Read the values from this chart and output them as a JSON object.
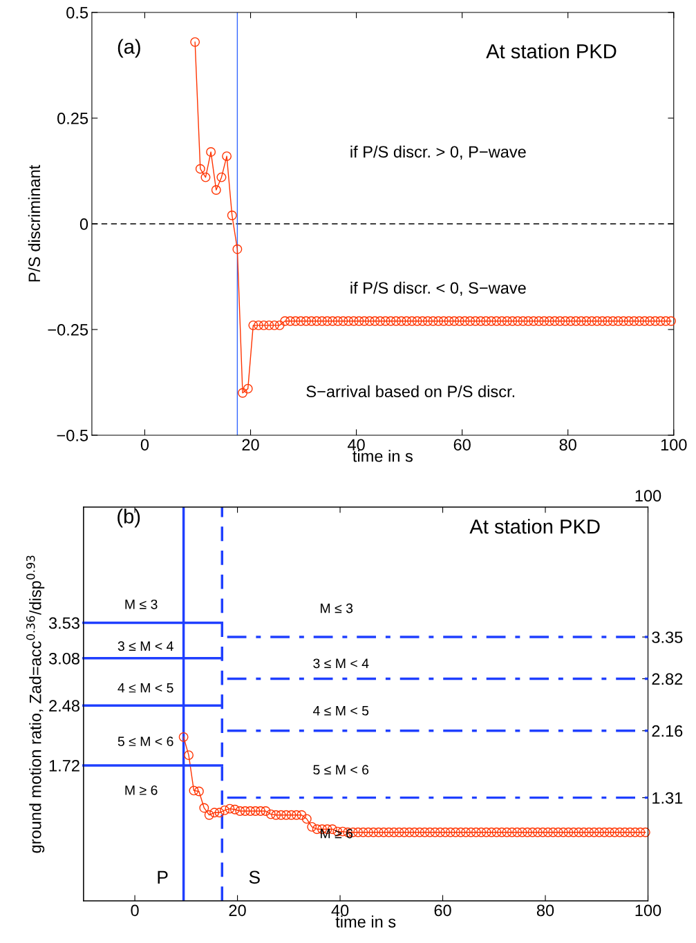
{
  "chart_data": [
    {
      "type": "line",
      "xlabel": "time in s",
      "ylabel": "P/S discriminant",
      "xlim": [
        -10,
        100
      ],
      "ylim": [
        -0.5,
        0.5
      ],
      "xticks": [
        0,
        20,
        40,
        60,
        80,
        100
      ],
      "yticks": [
        {
          "value": -0.5,
          "label": "−0.5"
        },
        {
          "value": -0.25,
          "label": "−0.25"
        },
        0,
        0.25,
        0.5
      ],
      "grid": false,
      "legend": false,
      "marker": "circle",
      "line_style": "solid",
      "series": [
        {
          "color": "#ff3300",
          "x": [
            9.5,
            10.5,
            11.5,
            12.5,
            13.5,
            14.5,
            15.5,
            16.5,
            17.5,
            18.5,
            19.5,
            20.5,
            21.5,
            22.5,
            23.5,
            24.5,
            25.5,
            26.5,
            27.5,
            28.5,
            29.5,
            30.5,
            31.5,
            32.5,
            33.5,
            34.5,
            35.5,
            36.5,
            37.5,
            38.5,
            39.5,
            40.5,
            41.5,
            42.5,
            43.5,
            44.5,
            45.5,
            46.5,
            47.5,
            48.5,
            49.5,
            50.5,
            51.5,
            52.5,
            53.5,
            54.5,
            55.5,
            56.5,
            57.5,
            58.5,
            59.5,
            60.5,
            61.5,
            62.5,
            63.5,
            64.5,
            65.5,
            66.5,
            67.5,
            68.5,
            69.5,
            70.5,
            71.5,
            72.5,
            73.5,
            74.5,
            75.5,
            76.5,
            77.5,
            78.5,
            79.5,
            80.5,
            81.5,
            82.5,
            83.5,
            84.5,
            85.5,
            86.5,
            87.5,
            88.5,
            89.5,
            90.5,
            91.5,
            92.5,
            93.5,
            94.5,
            95.5,
            96.5,
            97.5,
            98.5,
            99.5
          ],
          "values": [
            0.43,
            0.13,
            0.11,
            0.17,
            0.08,
            0.11,
            0.16,
            0.02,
            -0.06,
            -0.4,
            -0.39,
            -0.24,
            -0.24,
            -0.24,
            -0.24,
            -0.24,
            -0.24,
            -0.23,
            -0.23,
            -0.23,
            -0.23,
            -0.23,
            -0.23,
            -0.23,
            -0.23,
            -0.23,
            -0.23,
            -0.23,
            -0.23,
            -0.23,
            -0.23,
            -0.23,
            -0.23,
            -0.23,
            -0.23,
            -0.23,
            -0.23,
            -0.23,
            -0.23,
            -0.23,
            -0.23,
            -0.23,
            -0.23,
            -0.23,
            -0.23,
            -0.23,
            -0.23,
            -0.23,
            -0.23,
            -0.23,
            -0.23,
            -0.23,
            -0.23,
            -0.23,
            -0.23,
            -0.23,
            -0.23,
            -0.23,
            -0.23,
            -0.23,
            -0.23,
            -0.23,
            -0.23,
            -0.23,
            -0.23,
            -0.23,
            -0.23,
            -0.23,
            -0.23,
            -0.23,
            -0.23,
            -0.23,
            -0.23,
            -0.23,
            -0.23,
            -0.23,
            -0.23,
            -0.23,
            -0.23,
            -0.23,
            -0.23,
            -0.23,
            -0.23,
            -0.23,
            -0.23,
            -0.23,
            -0.23,
            -0.23,
            -0.23,
            -0.23,
            -0.23
          ]
        }
      ],
      "ref_lines": [
        {
          "axis": "y",
          "value": 0,
          "color": "#000000",
          "line_style": "dashed"
        },
        {
          "axis": "x",
          "value": 17.5,
          "color": "#3366ff",
          "line_style": "solid"
        }
      ],
      "annotations": [
        "(a)",
        "At station PKD",
        "if P/S discr. > 0, P−wave",
        "if P/S discr. < 0, S−wave",
        "S−arrival based on P/S discr."
      ]
    },
    {
      "type": "line",
      "xlabel": "time in s",
      "ylabel": "ground motion ratio, Zad=acc$^{0.36}$/disp$^{0.93}$",
      "xlim": [
        -10,
        100
      ],
      "ylim": [
        0,
        5
      ],
      "y2lim": [
        0,
        5
      ],
      "xticks": [
        0,
        20,
        40,
        60,
        80,
        100
      ],
      "yticks": [
        1.72,
        2.48,
        3.08,
        3.53
      ],
      "y2ticks": [
        1.31,
        2.16,
        2.82,
        3.35
      ],
      "grid": false,
      "legend": false,
      "series": [
        {
          "color": "#ff3300",
          "marker": "circle",
          "line_style": "solid",
          "x": [
            9.5,
            10.5,
            11.5,
            12.5,
            13.5,
            14.5,
            15.5,
            16.5,
            17.5,
            18.5,
            19.5,
            20.5,
            21.5,
            22.5,
            23.5,
            24.5,
            25.5,
            26.5,
            27.5,
            28.5,
            29.5,
            30.5,
            31.5,
            32.5,
            33.5,
            34.5,
            35.5,
            36.5,
            37.5,
            38.5,
            39.5,
            40.5,
            41.5,
            42.5,
            43.5,
            44.5,
            45.5,
            46.5,
            47.5,
            48.5,
            49.5,
            50.5,
            51.5,
            52.5,
            53.5,
            54.5,
            55.5,
            56.5,
            57.5,
            58.5,
            59.5,
            60.5,
            61.5,
            62.5,
            63.5,
            64.5,
            65.5,
            66.5,
            67.5,
            68.5,
            69.5,
            70.5,
            71.5,
            72.5,
            73.5,
            74.5,
            75.5,
            76.5,
            77.5,
            78.5,
            79.5,
            80.5,
            81.5,
            82.5,
            83.5,
            84.5,
            85.5,
            86.5,
            87.5,
            88.5,
            89.5,
            90.5,
            91.5,
            92.5,
            93.5,
            94.5,
            95.5,
            96.5,
            97.5,
            98.5,
            99.5
          ],
          "values": [
            2.08,
            1.85,
            1.4,
            1.39,
            1.18,
            1.09,
            1.12,
            1.12,
            1.15,
            1.17,
            1.16,
            1.14,
            1.14,
            1.14,
            1.14,
            1.14,
            1.14,
            1.1,
            1.09,
            1.09,
            1.09,
            1.09,
            1.09,
            1.09,
            1.04,
            0.94,
            0.91,
            0.91,
            0.91,
            0.91,
            0.88,
            0.88,
            0.87,
            0.87,
            0.87,
            0.87,
            0.87,
            0.87,
            0.87,
            0.87,
            0.87,
            0.87,
            0.87,
            0.87,
            0.87,
            0.87,
            0.87,
            0.87,
            0.87,
            0.87,
            0.87,
            0.87,
            0.87,
            0.87,
            0.87,
            0.87,
            0.87,
            0.87,
            0.87,
            0.87,
            0.87,
            0.87,
            0.87,
            0.87,
            0.87,
            0.87,
            0.87,
            0.87,
            0.87,
            0.87,
            0.87,
            0.87,
            0.87,
            0.87,
            0.87,
            0.87,
            0.87,
            0.87,
            0.87,
            0.87,
            0.87,
            0.87,
            0.87,
            0.87,
            0.87,
            0.87,
            0.87,
            0.87,
            0.87,
            0.87,
            0.87
          ]
        },
        {
          "color": "#1f3fff",
          "marker": "none",
          "line_style": "solid",
          "x": [
            -10,
            17
          ],
          "values": [
            3.53,
            3.53
          ]
        },
        {
          "color": "#1f3fff",
          "marker": "none",
          "line_style": "solid",
          "x": [
            -10,
            17
          ],
          "values": [
            3.08,
            3.08
          ]
        },
        {
          "color": "#1f3fff",
          "marker": "none",
          "line_style": "solid",
          "x": [
            -10,
            17
          ],
          "values": [
            2.48,
            2.48
          ]
        },
        {
          "color": "#1f3fff",
          "marker": "none",
          "line_style": "solid",
          "x": [
            -10,
            17
          ],
          "values": [
            1.72,
            1.72
          ]
        },
        {
          "color": "#1f3fff",
          "marker": "none",
          "line_style": "dashdot",
          "axis": "y2",
          "x": [
            18,
            100
          ],
          "values": [
            3.35,
            3.35
          ]
        },
        {
          "color": "#1f3fff",
          "marker": "none",
          "line_style": "dashdot",
          "axis": "y2",
          "x": [
            18,
            100
          ],
          "values": [
            2.82,
            2.82
          ]
        },
        {
          "color": "#1f3fff",
          "marker": "none",
          "line_style": "dashdot",
          "axis": "y2",
          "x": [
            18,
            100
          ],
          "values": [
            2.16,
            2.16
          ]
        },
        {
          "color": "#1f3fff",
          "marker": "none",
          "line_style": "dashdot",
          "axis": "y2",
          "x": [
            18,
            100
          ],
          "values": [
            1.31,
            1.31
          ]
        }
      ],
      "ref_lines": [
        {
          "axis": "x",
          "value": 9.5,
          "color": "#1f3fff",
          "line_style": "solid"
        },
        {
          "axis": "x",
          "value": 17,
          "color": "#1f3fff",
          "line_style": "dashed"
        }
      ],
      "annotations": [
        "(b)",
        "At station PKD",
        "100",
        "M ≤ 3",
        "3 ≤ M < 4",
        "4 ≤ M < 5",
        "5 ≤ M < 6",
        "M ≥ 6",
        "M ≤ 3",
        "3 ≤ M < 4",
        "4 ≤ M < 5",
        "5 ≤ M < 6",
        "M ≥ 6",
        "P",
        "S"
      ]
    }
  ]
}
